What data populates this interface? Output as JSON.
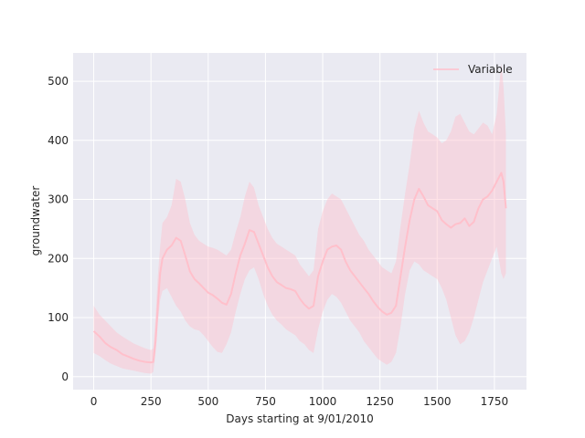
{
  "chart_data": {
    "type": "line",
    "title": "",
    "xlabel": "Days starting at 9/01/2010",
    "ylabel": "groundwater",
    "xlim": [
      -90,
      1890
    ],
    "ylim": [
      -22,
      548
    ],
    "xticks": [
      0,
      250,
      500,
      750,
      1000,
      1250,
      1500,
      1750
    ],
    "yticks": [
      0,
      100,
      200,
      300,
      400,
      500
    ],
    "grid": true,
    "legend": {
      "position": "top-right",
      "entries": [
        "Variable"
      ]
    },
    "colors": {
      "line": "#ffc0cb",
      "band": "#ffc0cb",
      "background": "#eaeaf2",
      "grid": "#ffffff"
    },
    "series": [
      {
        "name": "Variable",
        "x": [
          0,
          25,
          50,
          75,
          100,
          125,
          150,
          175,
          200,
          225,
          250,
          260,
          270,
          280,
          290,
          300,
          320,
          340,
          360,
          380,
          400,
          420,
          440,
          460,
          480,
          500,
          520,
          540,
          560,
          580,
          600,
          620,
          640,
          660,
          680,
          700,
          720,
          740,
          760,
          780,
          800,
          820,
          840,
          860,
          880,
          900,
          920,
          940,
          960,
          980,
          1000,
          1020,
          1040,
          1060,
          1080,
          1100,
          1120,
          1140,
          1160,
          1180,
          1200,
          1220,
          1240,
          1260,
          1280,
          1300,
          1320,
          1340,
          1360,
          1380,
          1400,
          1420,
          1440,
          1460,
          1480,
          1500,
          1520,
          1540,
          1560,
          1580,
          1600,
          1620,
          1640,
          1660,
          1680,
          1700,
          1720,
          1740,
          1760,
          1780,
          1790,
          1800
        ],
        "y": [
          77,
          68,
          57,
          50,
          45,
          38,
          34,
          30,
          27,
          25,
          24,
          25,
          60,
          120,
          175,
          200,
          215,
          222,
          235,
          230,
          205,
          178,
          165,
          158,
          150,
          142,
          138,
          132,
          125,
          122,
          140,
          175,
          205,
          225,
          248,
          245,
          225,
          205,
          185,
          170,
          160,
          155,
          150,
          148,
          145,
          132,
          122,
          115,
          120,
          170,
          195,
          215,
          220,
          222,
          215,
          195,
          180,
          170,
          160,
          150,
          140,
          128,
          118,
          110,
          105,
          108,
          120,
          170,
          220,
          265,
          300,
          318,
          305,
          290,
          285,
          280,
          265,
          258,
          252,
          258,
          260,
          268,
          255,
          262,
          285,
          300,
          305,
          315,
          330,
          345,
          330,
          285
        ],
        "lower": [
          40,
          35,
          28,
          22,
          18,
          14,
          12,
          10,
          8,
          6,
          5,
          8,
          40,
          90,
          130,
          145,
          150,
          135,
          120,
          110,
          95,
          85,
          80,
          78,
          70,
          60,
          50,
          42,
          40,
          55,
          75,
          110,
          140,
          165,
          180,
          185,
          165,
          140,
          120,
          105,
          95,
          88,
          80,
          75,
          70,
          60,
          55,
          45,
          40,
          80,
          110,
          130,
          140,
          135,
          125,
          110,
          95,
          85,
          75,
          60,
          50,
          40,
          30,
          25,
          20,
          25,
          40,
          85,
          140,
          180,
          195,
          190,
          180,
          175,
          170,
          165,
          150,
          130,
          100,
          70,
          55,
          60,
          75,
          100,
          130,
          160,
          180,
          200,
          220,
          175,
          165,
          175
        ],
        "upper": [
          120,
          105,
          95,
          85,
          75,
          68,
          62,
          56,
          52,
          48,
          45,
          48,
          100,
          170,
          220,
          260,
          270,
          290,
          335,
          330,
          300,
          260,
          240,
          230,
          225,
          220,
          218,
          215,
          210,
          205,
          215,
          245,
          270,
          305,
          330,
          320,
          290,
          270,
          250,
          235,
          225,
          220,
          215,
          210,
          205,
          190,
          180,
          170,
          180,
          250,
          280,
          300,
          310,
          305,
          300,
          285,
          270,
          255,
          240,
          230,
          215,
          205,
          195,
          185,
          180,
          175,
          195,
          255,
          310,
          360,
          420,
          450,
          430,
          415,
          410,
          405,
          395,
          400,
          415,
          440,
          445,
          430,
          415,
          410,
          420,
          430,
          425,
          410,
          445,
          530,
          490,
          410
        ]
      }
    ]
  }
}
